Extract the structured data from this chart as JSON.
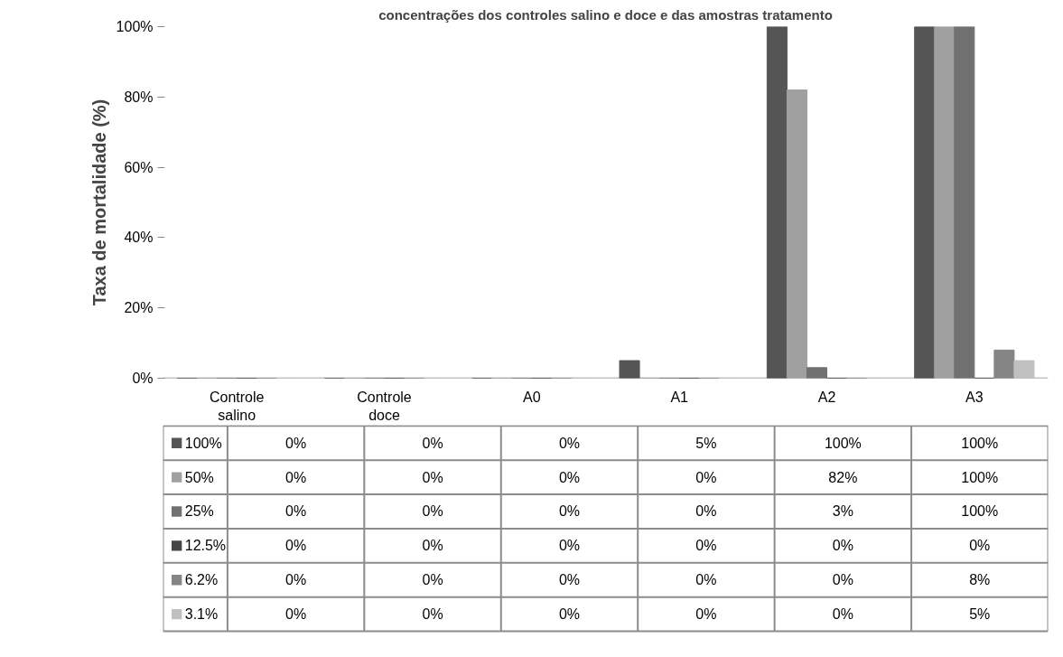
{
  "chart_data": {
    "type": "bar",
    "title": "concentrações dos controles salino e doce e das amostras tratamento",
    "ylabel": "Taxa de mortalidade (%)",
    "categories": [
      "Controle salino",
      "Controle doce",
      "A0",
      "A1",
      "A2",
      "A3"
    ],
    "series": [
      {
        "name": "100%",
        "color": "#555555",
        "values": [
          0,
          0,
          0,
          5,
          100,
          100
        ],
        "value_labels": [
          "0%",
          "0%",
          "0%",
          "5%",
          "100%",
          "100%"
        ]
      },
      {
        "name": "50%",
        "color": "#a0a0a0",
        "values": [
          0,
          0,
          0,
          0,
          82,
          100
        ],
        "value_labels": [
          "0%",
          "0%",
          "0%",
          "0%",
          "82%",
          "100%"
        ]
      },
      {
        "name": "25%",
        "color": "#717171",
        "values": [
          0,
          0,
          0,
          0,
          3,
          100
        ],
        "value_labels": [
          "0%",
          "0%",
          "0%",
          "0%",
          "3%",
          "100%"
        ]
      },
      {
        "name": "12.5%",
        "color": "#464646",
        "values": [
          0,
          0,
          0,
          0,
          0,
          0
        ],
        "value_labels": [
          "0%",
          "0%",
          "0%",
          "0%",
          "0%",
          "0%"
        ]
      },
      {
        "name": "6.2%",
        "color": "#858585",
        "values": [
          0,
          0,
          0,
          0,
          0,
          8
        ],
        "value_labels": [
          "0%",
          "0%",
          "0%",
          "0%",
          "0%",
          "8%"
        ]
      },
      {
        "name": "3.1%",
        "color": "#c0c0c0",
        "values": [
          0,
          0,
          0,
          0,
          0,
          5
        ],
        "value_labels": [
          "0%",
          "0%",
          "0%",
          "0%",
          "0%",
          "5%"
        ]
      }
    ],
    "ylim": [
      0,
      100
    ],
    "yticks": [
      {
        "value": 0,
        "label": "0%"
      },
      {
        "value": 20,
        "label": "20%"
      },
      {
        "value": 40,
        "label": "40%"
      },
      {
        "value": 60,
        "label": "60%"
      },
      {
        "value": 80,
        "label": "80%"
      },
      {
        "value": 100,
        "label": "100%"
      }
    ],
    "grid": false,
    "legend": "bottom"
  }
}
